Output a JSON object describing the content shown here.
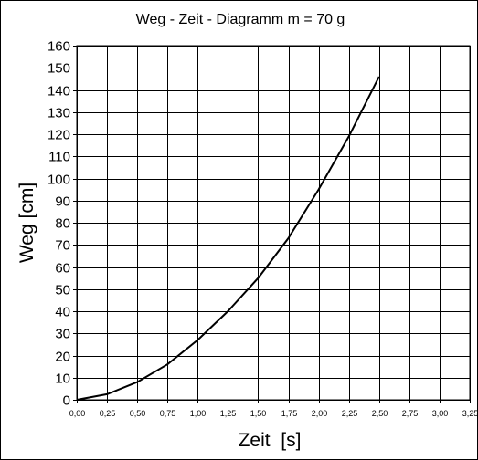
{
  "chart_data": {
    "type": "line",
    "title": "Weg - Zeit - Diagramm m = 70 g",
    "xlabel": "Zeit  [s]",
    "ylabel": "Weg [cm]",
    "xlim": [
      0,
      3.25
    ],
    "ylim": [
      0,
      160
    ],
    "x_ticks": [
      "0,00",
      "0,25",
      "0,50",
      "0,75",
      "1,00",
      "1,25",
      "1,50",
      "1,75",
      "2,00",
      "2,25",
      "2,50",
      "2,75",
      "3,00",
      "3,25"
    ],
    "y_ticks": [
      "0",
      "10",
      "20",
      "30",
      "40",
      "50",
      "60",
      "70",
      "80",
      "90",
      "100",
      "110",
      "120",
      "130",
      "140",
      "150",
      "160"
    ],
    "grid": true,
    "legend": "none",
    "series": [
      {
        "x": [
          0,
          0.25,
          0.5,
          0.75,
          1.0,
          1.25,
          1.5,
          1.75,
          2.0,
          2.25,
          2.5
        ],
        "y": [
          0,
          2.5,
          8,
          16,
          27,
          40,
          55,
          73,
          95,
          119,
          146
        ]
      }
    ]
  }
}
